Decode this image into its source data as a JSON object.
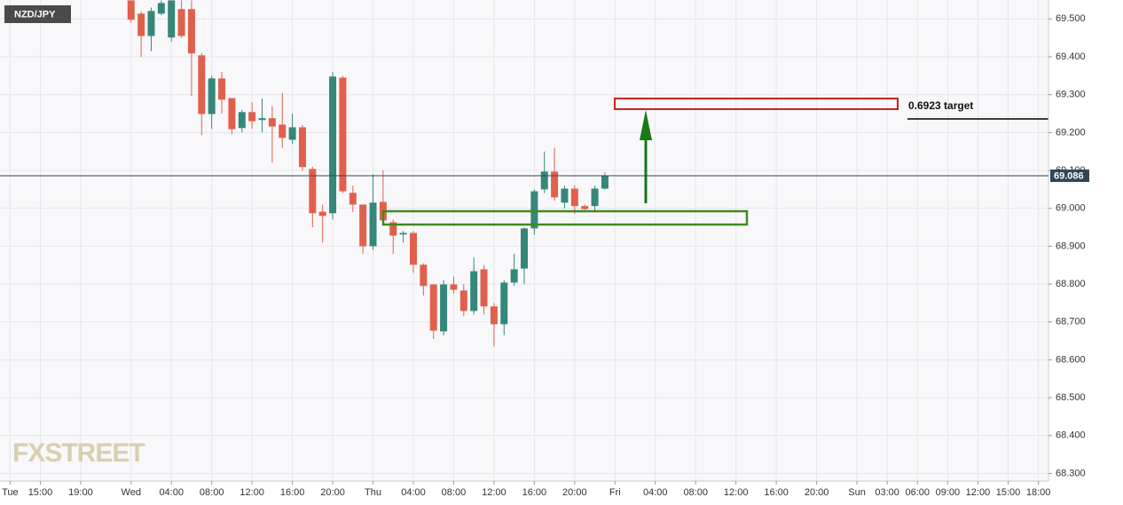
{
  "chart_data": {
    "type": "candlestick",
    "title": "NZD/JPY",
    "watermark": "FXSTREET",
    "up_color": "#35877a",
    "down_color": "#e0604d",
    "x": [
      0,
      1,
      2,
      3,
      4,
      5,
      6,
      7,
      8,
      9,
      10,
      11,
      12,
      13,
      14,
      15,
      16,
      17,
      18,
      19,
      20,
      21,
      22,
      23,
      24,
      25,
      26,
      27,
      28,
      29,
      30,
      31,
      32,
      33,
      34,
      35,
      36,
      37,
      38,
      39,
      40,
      41,
      42,
      43,
      44,
      45,
      46,
      47
    ],
    "open": [
      69.549,
      69.514,
      69.455,
      69.514,
      69.451,
      69.526,
      69.526,
      69.404,
      69.249,
      69.343,
      69.291,
      69.212,
      69.254,
      69.233,
      69.238,
      69.221,
      69.181,
      69.214,
      69.104,
      68.991,
      68.987,
      69.345,
      69.041,
      69.01,
      68.9,
      69.017,
      68.963,
      68.931,
      68.935,
      68.851,
      68.799,
      68.675,
      68.799,
      68.783,
      68.729,
      68.839,
      68.741,
      68.694,
      68.804,
      68.841,
      68.947,
      69.05,
      69.097,
      69.015,
      69.052,
      69.006,
      69.006,
      69.052
    ],
    "high": [
      69.549,
      69.52,
      69.53,
      69.549,
      69.549,
      69.549,
      69.549,
      69.41,
      69.35,
      69.36,
      69.29,
      69.26,
      69.28,
      69.29,
      69.27,
      69.305,
      69.25,
      69.22,
      69.11,
      69.01,
      69.36,
      69.35,
      69.06,
      69.01,
      69.09,
      69.1,
      68.97,
      68.94,
      68.94,
      68.855,
      68.8,
      68.81,
      68.82,
      68.8,
      68.87,
      68.85,
      68.75,
      68.81,
      68.88,
      68.95,
      69.05,
      69.15,
      69.16,
      69.06,
      69.06,
      69.01,
      69.06,
      69.095
    ],
    "low": [
      69.49,
      69.4,
      69.415,
      69.51,
      69.44,
      69.45,
      69.296,
      69.193,
      69.21,
      69.25,
      69.195,
      69.2,
      69.21,
      69.2,
      69.12,
      69.16,
      69.17,
      69.1,
      68.95,
      68.91,
      68.97,
      69.04,
      68.99,
      68.88,
      68.89,
      68.955,
      68.88,
      68.91,
      68.83,
      68.77,
      68.655,
      68.665,
      68.775,
      68.715,
      68.72,
      68.72,
      68.635,
      68.665,
      68.795,
      68.8,
      68.93,
      69.04,
      69.02,
      69.0,
      68.985,
      68.995,
      68.995,
      69.05
    ],
    "close": [
      69.498,
      69.455,
      69.521,
      69.542,
      69.549,
      69.455,
      69.409,
      69.249,
      69.343,
      69.287,
      69.209,
      69.254,
      69.23,
      69.238,
      69.216,
      69.186,
      69.214,
      69.109,
      68.987,
      68.98,
      69.348,
      69.045,
      69.01,
      68.9,
      69.015,
      68.968,
      68.928,
      68.935,
      68.851,
      68.795,
      68.677,
      68.799,
      68.785,
      68.729,
      68.834,
      68.741,
      68.694,
      68.804,
      68.839,
      68.947,
      69.045,
      69.097,
      69.029,
      69.052,
      69.006,
      68.998,
      69.052,
      69.085
    ],
    "xlim": [
      -13,
      91
    ],
    "xticks": [
      {
        "value": -12,
        "label": "Tue"
      },
      {
        "value": -9,
        "label": "15:00"
      },
      {
        "value": -5,
        "label": "19:00"
      },
      {
        "value": 0,
        "label": "Wed"
      },
      {
        "value": 4,
        "label": "04:00"
      },
      {
        "value": 8,
        "label": "08:00"
      },
      {
        "value": 12,
        "label": "12:00"
      },
      {
        "value": 16,
        "label": "16:00"
      },
      {
        "value": 20,
        "label": "20:00"
      },
      {
        "value": 24,
        "label": "Thu"
      },
      {
        "value": 28,
        "label": "04:00"
      },
      {
        "value": 32,
        "label": "08:00"
      },
      {
        "value": 36,
        "label": "12:00"
      },
      {
        "value": 40,
        "label": "16:00"
      },
      {
        "value": 44,
        "label": "20:00"
      },
      {
        "value": 48,
        "label": "Fri"
      },
      {
        "value": 52,
        "label": "04:00"
      },
      {
        "value": 56,
        "label": "08:00"
      },
      {
        "value": 60,
        "label": "12:00"
      },
      {
        "value": 64,
        "label": "16:00"
      },
      {
        "value": 68,
        "label": "20:00"
      },
      {
        "value": 72,
        "label": "Sun"
      },
      {
        "value": 75,
        "label": "03:00"
      },
      {
        "value": 78,
        "label": "06:00"
      },
      {
        "value": 81,
        "label": "09:00"
      },
      {
        "value": 84,
        "label": "12:00"
      },
      {
        "value": 87,
        "label": "15:00"
      },
      {
        "value": 90,
        "label": "18:00"
      }
    ],
    "ylim": [
      68.28,
      69.55
    ],
    "yticks": [
      {
        "value": 68.3,
        "label": "68.300"
      },
      {
        "value": 68.4,
        "label": "68.400"
      },
      {
        "value": 68.5,
        "label": "68.500"
      },
      {
        "value": 68.6,
        "label": "68.600"
      },
      {
        "value": 68.7,
        "label": "68.700"
      },
      {
        "value": 68.8,
        "label": "68.800"
      },
      {
        "value": 68.9,
        "label": "68.900"
      },
      {
        "value": 69.0,
        "label": "69.000"
      },
      {
        "value": 69.1,
        "label": "69.100"
      },
      {
        "value": 69.2,
        "label": "69.200"
      },
      {
        "value": 69.3,
        "label": "69.300"
      },
      {
        "value": 69.4,
        "label": "69.400"
      },
      {
        "value": 69.5,
        "label": "69.500"
      }
    ],
    "grid": true,
    "last_price": 69.086,
    "annotation": "0.6923 target"
  }
}
